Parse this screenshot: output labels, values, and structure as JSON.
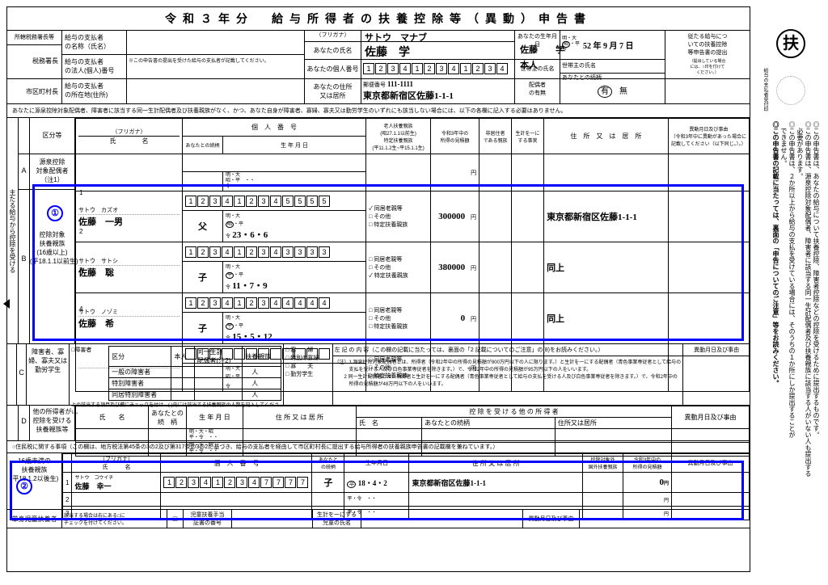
{
  "title": "令和３年分　給与所得者の扶養控除等（異動）申告書",
  "header": {
    "labels": {
      "tax_office": "所轄税務署長等",
      "payer_name": "給与の支払者\nの名称（氏名）",
      "tax_chief": "税務署長",
      "payer_corp": "給与の支払者\nの法人(個人)番号",
      "city_chief": "市区町村長",
      "payer_addr": "給与の支払者\nの所在地(住所)",
      "furigana": "（フリガナ）",
      "your_name": "あなたの氏名",
      "personal_no": "あなたの個人番号",
      "your_addr": "あなたの住所\n又は居所",
      "birth": "あなたの生年月日",
      "householder": "世帯主の氏名",
      "relation": "あなたとの続柄",
      "spouse_has": "配偶者\nの有無",
      "postal": "郵便番号",
      "note_corp": "※この申告書の提出を受けた給与の支払者が記載してください。",
      "right_box": "従たる給与につ\nいての扶養控除\n等申告書の提出",
      "right_box_note": "（提出している場合\nには、○印を付けて\nください。）"
    },
    "values": {
      "furigana": "サトウ　マナブ",
      "name": "佐藤　学",
      "personal_no": [
        "1",
        "2",
        "3",
        "4",
        "1",
        "2",
        "3",
        "4",
        "1",
        "2",
        "3",
        "4"
      ],
      "birth_era": "昭",
      "birth": "52 年 9 月 7 日",
      "householder": "佐藤　　学",
      "relation": "本人",
      "postal": "111-1111",
      "address": "東京都新宿区佐藤1-1-1",
      "spouse": "有",
      "spouse_no": "無"
    }
  },
  "instruction": "あなたに源泉控除対象配偶者、障害者に該当する同一生計配偶者及び扶養親族がなく、かつ、あなた自身が障害者、寡婦、寡夫又は勤労学生のいずれにも該当しない場合には、以下の各欄に記入する必要はありません。",
  "section_a": {
    "side": "主たる給与から控除を受ける",
    "label_a": "源泉控除\n対象配偶者\n（注1）",
    "label_b": "控除対象\n扶養親族\n(16歳以上)\n(平18.1.1以前生)",
    "cols": {
      "kubun": "区分等",
      "furigana": "（フリガナ）",
      "name": "氏　　　　名",
      "personal_no": "個　人　番　号",
      "relation": "あなたとの続柄",
      "birth": "生 年 月 日",
      "elder": "老人扶養親族\n(昭27.1.1以前生)",
      "special": "特定扶養親族\n(平11.1.2生~平15.1.1生)",
      "income": "令和3年中の\n所得の見積額",
      "nonres": "非居住者\nである親族",
      "fact": "生計を一に\nする事実",
      "address": "住　所　又　は　居　所",
      "change": "異動月日及び事由\n（令和3年中に異動があった場合に\n記載してください（以下同じ。）。）",
      "elder_opts": "同居老親等\nその他",
      "special_opt": "特定扶養親族"
    },
    "rows": [
      {
        "num": "1",
        "furi": "サトウ　カズオ",
        "name": "佐藤　一男",
        "pn": [
          "1",
          "2",
          "3",
          "4",
          "1",
          "2",
          "3",
          "4",
          "5",
          "5",
          "5",
          "5"
        ],
        "rel": "父",
        "era": "昭",
        "birth": "23・6・6",
        "elder_check": true,
        "special_check": false,
        "income": "300000",
        "addr": "東京都新宿区佐藤1-1-1"
      },
      {
        "num": "2",
        "furi": "サトウ　サトシ",
        "name": "佐藤　聡",
        "pn": [
          "1",
          "2",
          "3",
          "4",
          "1",
          "2",
          "3",
          "4",
          "3",
          "3",
          "3",
          "3"
        ],
        "rel": "子",
        "era": "平",
        "birth": "11・7・9",
        "elder_check": false,
        "special_check": true,
        "income": "380000",
        "addr": "同上"
      },
      {
        "num": "3",
        "furi": "サトウ　ノゾミ",
        "name": "佐藤　希",
        "pn": [
          "1",
          "2",
          "3",
          "4",
          "1",
          "2",
          "3",
          "4",
          "4",
          "4",
          "4",
          "4"
        ],
        "rel": "子",
        "era": "平",
        "birth": "15・5・12",
        "elder_check": false,
        "special_check": false,
        "income": "0",
        "addr": "同上"
      },
      {
        "num": "4",
        "furi": "",
        "name": "",
        "pn": [
          "",
          "",
          "",
          "",
          "",
          "",
          "",
          "",
          "",
          "",
          "",
          ""
        ],
        "rel": "",
        "era": "",
        "birth": "",
        "elder_check": false,
        "special_check": false,
        "income": "",
        "addr": ""
      }
    ]
  },
  "section_c": {
    "label": "障害者、寡\n婦、寡夫又は\n勤労学生",
    "cols": [
      "区分",
      "本人",
      "同一生計\n配偶者(注2)",
      "扶養親族"
    ],
    "disabled": "□障害者",
    "rows": [
      "一般の障害者",
      "特別障害者",
      "同居特別障害者"
    ],
    "widow": "□ 寡　　婦",
    "special_widow": "□ 特別の寡婦",
    "widower": "□ 寡　　夫",
    "student": "□ 勤労学生",
    "note_left": "左 記 の 内 容（この欄の記載に当たっては、裏面の「2 記載についてのご注意」の(8)をお読みください。）",
    "change": "異動月日及び事由",
    "footnote": "上の該当する項目及び欄にチェックを付け、( )内には該当する扶養親族の人数を記入してください。",
    "note1": "（注）1 源泉控除対象配偶者とは、所得者（令和2年中の所得の見積額が900万円以下の人に限ります。）と生計を一にする配偶者（青色事業専従者として給与の\n　　　支払を受ける人及び白色事業専従者を除きます。）で、令和2年中の所得の見積額が95万円以下の人をいいます。\n　　2 同一生計配偶者とは、所得者と生計を一にする配偶者（青色事業専従者として給与の支払を受ける人及び白色事業専従者を除きます。）で、令和2年中の\n　　　所得の見積額が48万円以下の人をいいます。"
  },
  "section_d": {
    "label": "他の所得者が\n控除を受ける\n扶養親族等",
    "cols": [
      "氏　　名",
      "あなたとの\n続　柄",
      "生 年 月 日",
      "住 所 又 は 居 所",
      "控 除 を 受 け る 他 の 所 得 者",
      "異動月日及び事由"
    ],
    "subcols": [
      "氏　名",
      "あなたとの続柄",
      "住所又は居所"
    ]
  },
  "resident_note": "○住民税に関する事項（この欄は、地方税法第45条の3の2及び第317条の3の2に基づき、給与の支払者を経由して市区町村長に提出する給与所得者の扶養親族申告書の記載欄を兼ねています。）",
  "section_minor": {
    "label": "16歳未満の\n扶養親族\n(平18.1.2以後生)",
    "cols": [
      "（フリガナ）\n氏　　　名",
      "個　人　番　号",
      "あなたと\nの続柄",
      "生年月日",
      "住 所 又 は 居 所",
      "控除対象外\n国外扶養親族",
      "令和3年中の\n所得の見積額",
      "異動月日及び事由"
    ],
    "rows": [
      {
        "num": "1",
        "furi": "サトウ　コウイチ",
        "name": "佐藤　幸一",
        "pn": [
          "1",
          "2",
          "3",
          "4",
          "1",
          "2",
          "3",
          "4",
          "7",
          "7",
          "7",
          "7"
        ],
        "rel": "子",
        "era": "平",
        "birth": "18・4・2",
        "addr": "東京都新宿区佐藤1-1-1",
        "income": "0"
      },
      {
        "num": "2"
      },
      {
        "num": "3"
      }
    ]
  },
  "single_parent": {
    "label": "単身児童扶養者",
    "note": "該当する場合は右にある□に\nチェックを付けてください。",
    "col1": "児童扶養手当\n証書の番号",
    "col2": "生計を一にする\n児童の氏名",
    "col3": "異動月日及び事由"
  },
  "right_side": {
    "fu": "扶",
    "seal_label": "給与の支払者受付印",
    "text1": "◎この申告書は、あなたの給与について扶養控除、障害者控除などの控除を受けるために提出するものです。",
    "text2": "◎この申告書は、源泉控除対象配偶者、障害者に該当する同一生計配偶者及び扶養親族に該当する人がいない人も提出する",
    "text3": "　必要があります。",
    "text4": "◎この申告書は、２か所以上から給与の支払を受けている場合には、そのうちの１か所にしか提出することが",
    "text5": "　できません。",
    "text6": "◎この申告書の記載に当たっては、裏面の「申告についてのご注意」等をお読みください。"
  },
  "era_options": "明・大\n昭・平\n令"
}
